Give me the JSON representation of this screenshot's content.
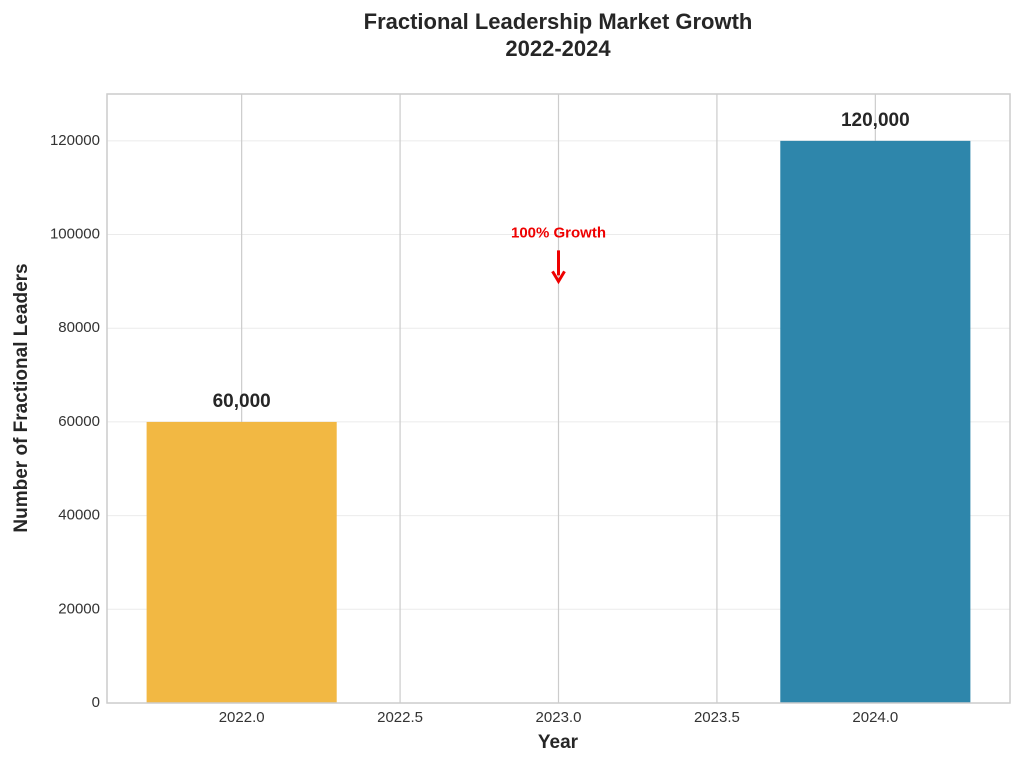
{
  "chart_data": {
    "type": "bar",
    "title": "Fractional Leadership Market Growth",
    "subtitle": "2022-2024",
    "x_label": "Year",
    "y_label": "Number of Fractional Leaders",
    "x": [
      2022,
      2024
    ],
    "values": [
      60000,
      120000
    ],
    "value_labels": [
      "60,000",
      "120,000"
    ],
    "colors": [
      "#f2b843",
      "#2e86ab"
    ],
    "bar_width": 0.6,
    "xlim": [
      2021.575,
      2024.425
    ],
    "xticks": [
      {
        "value": 2022,
        "label": "2022.0"
      },
      {
        "value": 2022.5,
        "label": "2022.5"
      },
      {
        "value": 2023,
        "label": "2023.0"
      },
      {
        "value": 2023.5,
        "label": "2023.5"
      },
      {
        "value": 2024,
        "label": "2024.0"
      }
    ],
    "ylim": [
      0,
      130000
    ],
    "yticks": [
      0,
      20000,
      40000,
      60000,
      80000,
      100000,
      120000
    ],
    "grid": true,
    "annotation": {
      "text": "100% Growth",
      "color": "#ee0000"
    }
  }
}
